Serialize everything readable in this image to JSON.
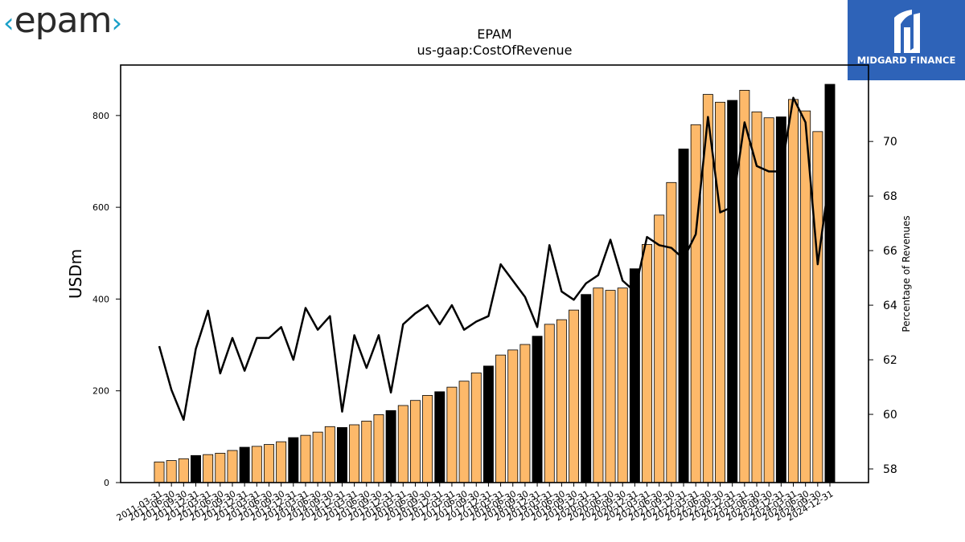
{
  "header": {
    "brand_logo_text": "epam",
    "sponsor_logo_text": "MIDGARD FINANCE"
  },
  "colors": {
    "bar_quarter": "#fdb96a",
    "bar_year_end": "#000000",
    "line": "#000000",
    "sponsor_bg": "#2e63b8",
    "brand_accent": "#1aa0c8"
  },
  "chart_data": {
    "type": "bar",
    "title": "EPAM",
    "subtitle": "us-gaap:CostOfRevenue",
    "ylabel": "USDm",
    "y2label": "Percentage of Revenues",
    "ylim": [
      0,
      910
    ],
    "y2lim": [
      57.5,
      72.8
    ],
    "yticks": [
      0,
      200,
      400,
      600,
      800
    ],
    "y2ticks": [
      58,
      60,
      62,
      64,
      66,
      68,
      70
    ],
    "grid": false,
    "categories": [
      "2011-03-31",
      "2011-06-30",
      "2011-09-30",
      "2011-12-31",
      "2012-03-31",
      "2012-06-30",
      "2012-09-30",
      "2012-12-31",
      "2013-03-31",
      "2013-06-30",
      "2013-09-30",
      "2013-12-31",
      "2014-03-31",
      "2014-06-30",
      "2014-09-30",
      "2014-12-31",
      "2015-03-31",
      "2015-06-30",
      "2015-09-30",
      "2015-12-31",
      "2016-03-31",
      "2016-06-30",
      "2016-09-30",
      "2016-12-31",
      "2017-03-31",
      "2017-06-30",
      "2017-09-30",
      "2017-12-31",
      "2018-03-31",
      "2018-06-30",
      "2018-09-30",
      "2018-12-31",
      "2019-03-31",
      "2019-06-30",
      "2019-09-30",
      "2019-12-31",
      "2020-03-31",
      "2020-06-30",
      "2020-09-30",
      "2020-12-31",
      "2021-03-31",
      "2021-06-30",
      "2021-09-30",
      "2021-12-31",
      "2022-03-31",
      "2022-06-30",
      "2022-09-30",
      "2022-12-31",
      "2023-03-31",
      "2023-06-30",
      "2023-09-30",
      "2023-12-31",
      "2024-03-31",
      "2024-06-30",
      "2024-09-30",
      "2024-12-31"
    ],
    "series": [
      {
        "kind": "bar",
        "axis": "left",
        "values": [
          45,
          48,
          52,
          59,
          61,
          64,
          70,
          77,
          79,
          83,
          89,
          98,
          103,
          110,
          122,
          120,
          126,
          134,
          148,
          157,
          168,
          179,
          190,
          198,
          208,
          221,
          239,
          254,
          278,
          289,
          301,
          319,
          345,
          355,
          376,
          410,
          424,
          419,
          424,
          466,
          519,
          583,
          654,
          727,
          780,
          846,
          829,
          833,
          855,
          808,
          795,
          797,
          835,
          810,
          765,
          868
        ],
        "year_end_flags": [
          false,
          false,
          false,
          true,
          false,
          false,
          false,
          true,
          false,
          false,
          false,
          true,
          false,
          false,
          false,
          true,
          false,
          false,
          false,
          true,
          false,
          false,
          false,
          true,
          false,
          false,
          false,
          true,
          false,
          false,
          false,
          true,
          false,
          false,
          false,
          true,
          false,
          false,
          false,
          true,
          false,
          false,
          false,
          true,
          false,
          false,
          false,
          true,
          false,
          false,
          false,
          true,
          false,
          false,
          false,
          true
        ]
      },
      {
        "kind": "line",
        "axis": "right",
        "values": [
          62.5,
          60.9,
          59.8,
          62.4,
          63.8,
          61.5,
          62.8,
          61.6,
          62.8,
          62.8,
          63.2,
          62.0,
          63.9,
          63.1,
          63.6,
          60.1,
          62.9,
          61.7,
          62.9,
          60.8,
          63.3,
          63.7,
          64.0,
          63.3,
          64.0,
          63.1,
          63.4,
          63.6,
          65.5,
          64.9,
          64.3,
          63.2,
          66.2,
          64.5,
          64.2,
          64.8,
          65.1,
          66.4,
          64.9,
          64.5,
          66.5,
          66.2,
          66.1,
          65.7,
          66.6,
          70.9,
          67.4,
          67.6,
          70.7,
          69.1,
          68.9,
          68.9,
          71.6,
          70.7,
          65.5,
          68.8
        ]
      }
    ]
  }
}
